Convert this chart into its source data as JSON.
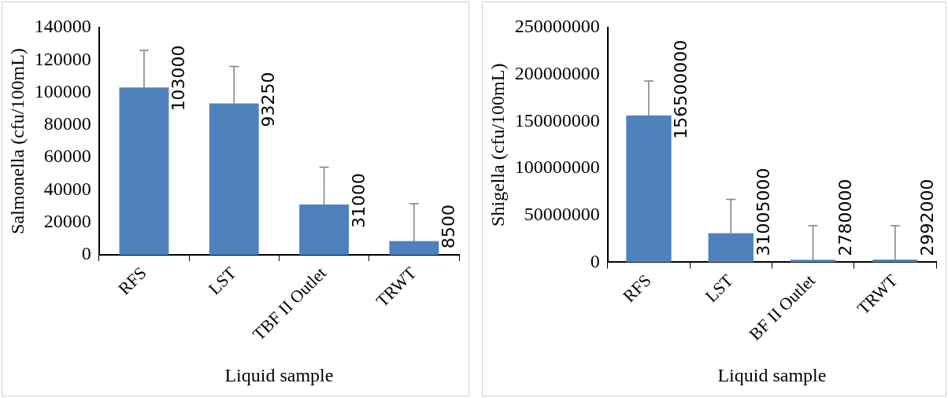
{
  "chart_data": [
    {
      "type": "bar",
      "xlabel": "Liquid sample",
      "ylabel": "Salmonella (cfu/100mL)",
      "categories": [
        "RFS",
        "LST",
        "TBF II Outlet",
        "TRWT"
      ],
      "values": [
        103000,
        93250,
        31000,
        8500
      ],
      "color": "#4f81bd",
      "errors": [
        [
          103000,
          126000
        ],
        [
          93250,
          116000
        ],
        [
          31000,
          54000
        ],
        [
          8500,
          31500
        ]
      ],
      "ylim": [
        0,
        140000
      ],
      "yticks": [
        0,
        20000,
        40000,
        60000,
        80000,
        100000,
        120000,
        140000
      ],
      "data_labels": true,
      "grid": false,
      "legend": false
    },
    {
      "type": "bar",
      "xlabel": "Liquid sample",
      "ylabel": "Shigella (cfu/100mL)",
      "categories": [
        "RFS",
        "LST",
        "BF II Outlet",
        "TRWT"
      ],
      "values": [
        156500000,
        31005000,
        2780000,
        2992000
      ],
      "color": "#4f81bd",
      "errors": [
        [
          156500000,
          193000000
        ],
        [
          31005000,
          67000000
        ],
        [
          2780000,
          39000000
        ],
        [
          2992000,
          39000000
        ]
      ],
      "ylim": [
        0,
        250000000
      ],
      "yticks": [
        0,
        50000000,
        100000000,
        150000000,
        200000000,
        250000000
      ],
      "data_labels": true,
      "grid": false,
      "legend": false
    }
  ]
}
